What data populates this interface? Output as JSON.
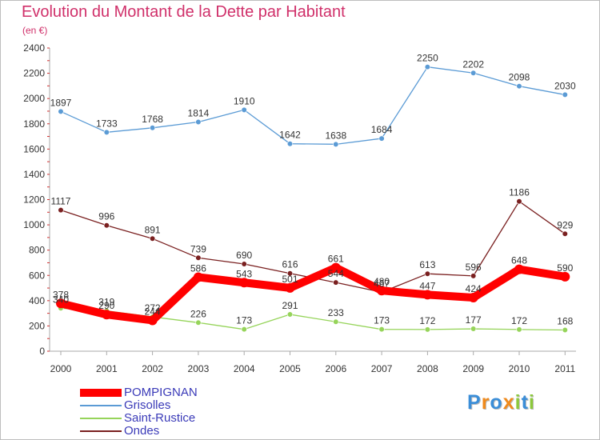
{
  "chart_data": {
    "type": "line",
    "title": "Evolution du Montant de la Dette par Habitant",
    "subtitle": "(en €)",
    "x": [
      "2000",
      "2001",
      "2002",
      "2003",
      "2004",
      "2005",
      "2006",
      "2007",
      "2008",
      "2009",
      "2010",
      "2011"
    ],
    "ylim": [
      0,
      2400
    ],
    "yticks": [
      "0",
      "200",
      "400",
      "600",
      "800",
      "1000",
      "1200",
      "1400",
      "1600",
      "1800",
      "2000",
      "2200",
      "2400"
    ],
    "grid": false,
    "legend_position": "bottom-left",
    "series": [
      {
        "name": "Grisolles",
        "color": "#5b9bd5",
        "values": [
          1897,
          1733,
          1768,
          1814,
          1910,
          1642,
          1638,
          1684,
          2250,
          2202,
          2098,
          2030
        ]
      },
      {
        "name": "Saint-Rustice",
        "color": "#96d45a",
        "values": [
          340,
          319,
          272,
          226,
          173,
          291,
          233,
          173,
          172,
          177,
          172,
          168
        ]
      },
      {
        "name": "Ondes",
        "color": "#7a2020",
        "values": [
          1117,
          996,
          891,
          739,
          690,
          616,
          544,
          467,
          613,
          596,
          1186,
          929
        ]
      },
      {
        "name": "POMPIGNAN",
        "color": "#ff0000",
        "values": [
          378,
          290,
          244,
          586,
          543,
          501,
          661,
          480,
          447,
          424,
          648,
          590
        ]
      }
    ]
  },
  "legend": {
    "items": [
      {
        "name": "POMPIGNAN",
        "color": "#ff0000",
        "width": 10
      },
      {
        "name": "Grisolles",
        "color": "#5b9bd5",
        "width": 2
      },
      {
        "name": "Saint-Rustice",
        "color": "#96d45a",
        "width": 2
      },
      {
        "name": "Ondes",
        "color": "#7a2020",
        "width": 2
      }
    ]
  },
  "logo": {
    "letters": [
      "P",
      "r",
      "o",
      "x",
      "i",
      "t",
      "i"
    ],
    "colors": [
      "#3b8ed8",
      "#f08a1c",
      "#3b8ed8",
      "#f08a1c",
      "#8cc83c",
      "#3b8ed8",
      "#8cc83c"
    ]
  }
}
